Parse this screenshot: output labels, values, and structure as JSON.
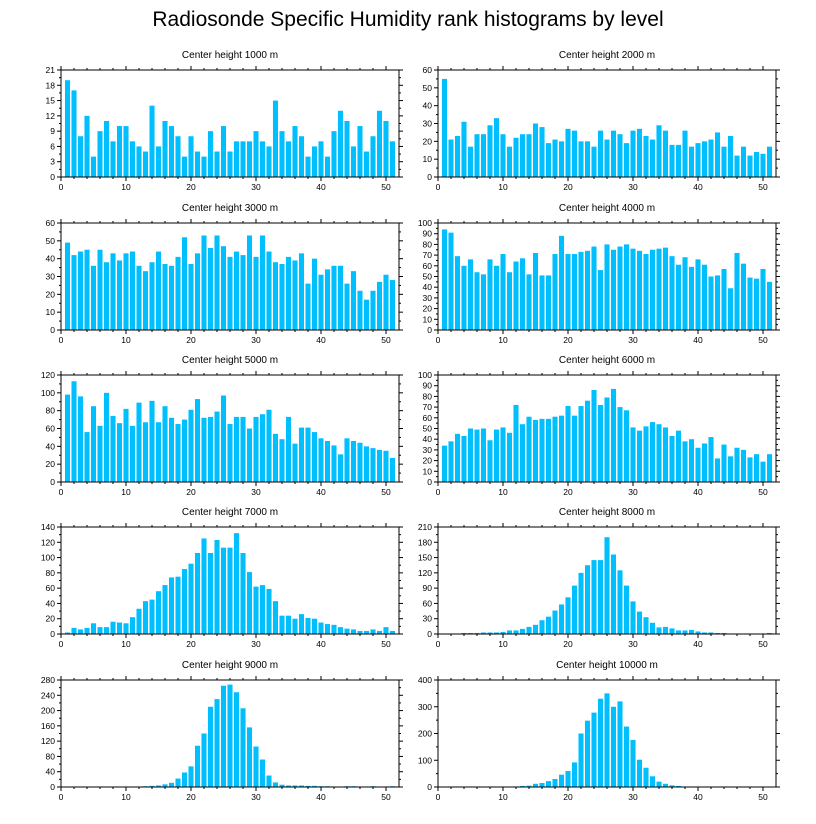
{
  "page_title": "Radiosonde Specific Humidity rank histograms by level",
  "colors": {
    "bar": "#00bfff",
    "axis": "#000000",
    "background": "#ffffff"
  },
  "chart_data": [
    {
      "type": "bar",
      "title": "Center height 1000 m",
      "xlabel": "",
      "ylabel": "",
      "xlim": [
        0,
        52
      ],
      "ylim": [
        0,
        21
      ],
      "yticks": [
        0,
        3,
        6,
        9,
        12,
        15,
        18,
        21
      ],
      "xticks": [
        0,
        10,
        20,
        30,
        40,
        50
      ],
      "categories": [
        1,
        2,
        3,
        4,
        5,
        6,
        7,
        8,
        9,
        10,
        11,
        12,
        13,
        14,
        15,
        16,
        17,
        18,
        19,
        20,
        21,
        22,
        23,
        24,
        25,
        26,
        27,
        28,
        29,
        30,
        31,
        32,
        33,
        34,
        35,
        36,
        37,
        38,
        39,
        40,
        41,
        42,
        43,
        44,
        45,
        46,
        47,
        48,
        49,
        50,
        51
      ],
      "values": [
        19,
        17,
        8,
        12,
        4,
        9,
        11,
        7,
        10,
        10,
        7,
        6,
        5,
        14,
        6,
        11,
        10,
        8,
        4,
        8,
        5,
        4,
        9,
        5,
        10,
        5,
        7,
        7,
        7,
        9,
        7,
        6,
        15,
        9,
        7,
        10,
        8,
        4,
        6,
        7,
        4,
        9,
        13,
        11,
        6,
        10,
        5,
        8,
        13,
        11,
        7
      ]
    },
    {
      "type": "bar",
      "title": "Center height 2000 m",
      "xlabel": "",
      "ylabel": "",
      "xlim": [
        0,
        52
      ],
      "ylim": [
        0,
        60
      ],
      "yticks": [
        0,
        10,
        20,
        30,
        40,
        50,
        60
      ],
      "xticks": [
        0,
        10,
        20,
        30,
        40,
        50
      ],
      "categories": [
        1,
        2,
        3,
        4,
        5,
        6,
        7,
        8,
        9,
        10,
        11,
        12,
        13,
        14,
        15,
        16,
        17,
        18,
        19,
        20,
        21,
        22,
        23,
        24,
        25,
        26,
        27,
        28,
        29,
        30,
        31,
        32,
        33,
        34,
        35,
        36,
        37,
        38,
        39,
        40,
        41,
        42,
        43,
        44,
        45,
        46,
        47,
        48,
        49,
        50,
        51
      ],
      "values": [
        55,
        21,
        23,
        31,
        17,
        24,
        24,
        29,
        33,
        24,
        17,
        22,
        24,
        24,
        30,
        28,
        19,
        21,
        20,
        27,
        26,
        20,
        20,
        17,
        26,
        21,
        26,
        24,
        19,
        26,
        27,
        23,
        21,
        29,
        26,
        18,
        18,
        26,
        17,
        19,
        20,
        21,
        25,
        17,
        23,
        12,
        17,
        12,
        14,
        13,
        17
      ]
    },
    {
      "type": "bar",
      "title": "Center height 3000 m",
      "xlabel": "",
      "ylabel": "",
      "xlim": [
        0,
        52
      ],
      "ylim": [
        0,
        60
      ],
      "yticks": [
        0,
        10,
        20,
        30,
        40,
        50,
        60
      ],
      "xticks": [
        0,
        10,
        20,
        30,
        40,
        50
      ],
      "categories": [
        1,
        2,
        3,
        4,
        5,
        6,
        7,
        8,
        9,
        10,
        11,
        12,
        13,
        14,
        15,
        16,
        17,
        18,
        19,
        20,
        21,
        22,
        23,
        24,
        25,
        26,
        27,
        28,
        29,
        30,
        31,
        32,
        33,
        34,
        35,
        36,
        37,
        38,
        39,
        40,
        41,
        42,
        43,
        44,
        45,
        46,
        47,
        48,
        49,
        50,
        51
      ],
      "values": [
        49,
        42,
        44,
        45,
        36,
        45,
        38,
        43,
        39,
        43,
        44,
        36,
        33,
        38,
        44,
        37,
        36,
        41,
        52,
        37,
        43,
        53,
        46,
        53,
        47,
        41,
        44,
        42,
        53,
        41,
        53,
        44,
        38,
        37,
        41,
        39,
        43,
        26,
        40,
        31,
        34,
        36,
        36,
        26,
        33,
        22,
        17,
        22,
        27,
        31,
        28
      ]
    },
    {
      "type": "bar",
      "title": "Center height 4000 m",
      "xlabel": "",
      "ylabel": "",
      "xlim": [
        0,
        52
      ],
      "ylim": [
        0,
        100
      ],
      "yticks": [
        0,
        10,
        20,
        30,
        40,
        50,
        60,
        70,
        80,
        90,
        100
      ],
      "xticks": [
        0,
        10,
        20,
        30,
        40,
        50
      ],
      "categories": [
        1,
        2,
        3,
        4,
        5,
        6,
        7,
        8,
        9,
        10,
        11,
        12,
        13,
        14,
        15,
        16,
        17,
        18,
        19,
        20,
        21,
        22,
        23,
        24,
        25,
        26,
        27,
        28,
        29,
        30,
        31,
        32,
        33,
        34,
        35,
        36,
        37,
        38,
        39,
        40,
        41,
        42,
        43,
        44,
        45,
        46,
        47,
        48,
        49,
        50,
        51
      ],
      "values": [
        94,
        91,
        69,
        60,
        66,
        54,
        52,
        66,
        60,
        71,
        54,
        64,
        67,
        52,
        72,
        51,
        51,
        71,
        88,
        71,
        71,
        73,
        74,
        78,
        56,
        80,
        75,
        78,
        80,
        76,
        74,
        71,
        75,
        76,
        77,
        69,
        61,
        68,
        59,
        66,
        61,
        50,
        51,
        57,
        39,
        72,
        62,
        49,
        48,
        57,
        45
      ]
    },
    {
      "type": "bar",
      "title": "Center height 5000 m",
      "xlabel": "",
      "ylabel": "",
      "xlim": [
        0,
        52
      ],
      "ylim": [
        0,
        120
      ],
      "yticks": [
        0,
        20,
        40,
        60,
        80,
        100,
        120
      ],
      "xticks": [
        0,
        10,
        20,
        30,
        40,
        50
      ],
      "categories": [
        1,
        2,
        3,
        4,
        5,
        6,
        7,
        8,
        9,
        10,
        11,
        12,
        13,
        14,
        15,
        16,
        17,
        18,
        19,
        20,
        21,
        22,
        23,
        24,
        25,
        26,
        27,
        28,
        29,
        30,
        31,
        32,
        33,
        34,
        35,
        36,
        37,
        38,
        39,
        40,
        41,
        42,
        43,
        44,
        45,
        46,
        47,
        48,
        49,
        50,
        51
      ],
      "values": [
        98,
        113,
        96,
        56,
        85,
        63,
        100,
        74,
        66,
        82,
        63,
        89,
        67,
        91,
        67,
        85,
        72,
        65,
        70,
        81,
        93,
        72,
        73,
        79,
        97,
        65,
        73,
        73,
        60,
        73,
        76,
        81,
        54,
        48,
        73,
        43,
        61,
        61,
        56,
        49,
        46,
        41,
        31,
        49,
        46,
        44,
        40,
        38,
        36,
        35,
        27
      ]
    },
    {
      "type": "bar",
      "title": "Center height 6000 m",
      "xlabel": "",
      "ylabel": "",
      "xlim": [
        0,
        52
      ],
      "ylim": [
        0,
        100
      ],
      "yticks": [
        0,
        10,
        20,
        30,
        40,
        50,
        60,
        70,
        80,
        90,
        100
      ],
      "xticks": [
        0,
        10,
        20,
        30,
        40,
        50
      ],
      "categories": [
        1,
        2,
        3,
        4,
        5,
        6,
        7,
        8,
        9,
        10,
        11,
        12,
        13,
        14,
        15,
        16,
        17,
        18,
        19,
        20,
        21,
        22,
        23,
        24,
        25,
        26,
        27,
        28,
        29,
        30,
        31,
        32,
        33,
        34,
        35,
        36,
        37,
        38,
        39,
        40,
        41,
        42,
        43,
        44,
        45,
        46,
        47,
        48,
        49,
        50,
        51
      ],
      "values": [
        34,
        38,
        45,
        43,
        50,
        49,
        50,
        39,
        49,
        51,
        46,
        72,
        54,
        61,
        58,
        59,
        59,
        61,
        62,
        71,
        62,
        71,
        76,
        86,
        72,
        79,
        87,
        70,
        67,
        51,
        48,
        52,
        56,
        54,
        51,
        43,
        48,
        38,
        40,
        32,
        36,
        42,
        22,
        35,
        24,
        32,
        30,
        23,
        26,
        19,
        26
      ]
    },
    {
      "type": "bar",
      "title": "Center height 7000 m",
      "xlabel": "",
      "ylabel": "",
      "xlim": [
        0,
        52
      ],
      "ylim": [
        0,
        140
      ],
      "yticks": [
        0,
        20,
        40,
        60,
        80,
        100,
        120,
        140
      ],
      "xticks": [
        0,
        10,
        20,
        30,
        40,
        50
      ],
      "categories": [
        1,
        2,
        3,
        4,
        5,
        6,
        7,
        8,
        9,
        10,
        11,
        12,
        13,
        14,
        15,
        16,
        17,
        18,
        19,
        20,
        21,
        22,
        23,
        24,
        25,
        26,
        27,
        28,
        29,
        30,
        31,
        32,
        33,
        34,
        35,
        36,
        37,
        38,
        39,
        40,
        41,
        42,
        43,
        44,
        45,
        46,
        47,
        48,
        49,
        50,
        51
      ],
      "values": [
        2,
        8,
        6,
        8,
        14,
        9,
        9,
        16,
        15,
        14,
        22,
        33,
        43,
        45,
        56,
        64,
        74,
        75,
        85,
        92,
        106,
        125,
        106,
        123,
        113,
        113,
        132,
        106,
        81,
        62,
        64,
        59,
        43,
        24,
        24,
        20,
        26,
        21,
        20,
        15,
        13,
        12,
        9,
        7,
        6,
        4,
        4,
        6,
        4,
        9,
        4
      ]
    },
    {
      "type": "bar",
      "title": "Center height 8000 m",
      "xlabel": "",
      "ylabel": "",
      "xlim": [
        0,
        52
      ],
      "ylim": [
        0,
        210
      ],
      "yticks": [
        0,
        30,
        60,
        90,
        120,
        150,
        180,
        210
      ],
      "xticks": [
        0,
        10,
        20,
        30,
        40,
        50
      ],
      "categories": [
        1,
        2,
        3,
        4,
        5,
        6,
        7,
        8,
        9,
        10,
        11,
        12,
        13,
        14,
        15,
        16,
        17,
        18,
        19,
        20,
        21,
        22,
        23,
        24,
        25,
        26,
        27,
        28,
        29,
        30,
        31,
        32,
        33,
        34,
        35,
        36,
        37,
        38,
        39,
        40,
        41,
        42,
        43,
        44,
        45,
        46,
        47,
        48,
        49,
        50,
        51
      ],
      "values": [
        0,
        0,
        0,
        2,
        2,
        2,
        3,
        3,
        3,
        4,
        7,
        7,
        10,
        14,
        18,
        27,
        34,
        46,
        58,
        72,
        95,
        120,
        135,
        145,
        145,
        190,
        156,
        125,
        95,
        64,
        44,
        33,
        22,
        13,
        14,
        11,
        7,
        7,
        8,
        5,
        3,
        3,
        2,
        2,
        1,
        1,
        1,
        0,
        0,
        0,
        2
      ]
    },
    {
      "type": "bar",
      "title": "Center height 9000 m",
      "xlabel": "",
      "ylabel": "",
      "xlim": [
        0,
        52
      ],
      "ylim": [
        0,
        280
      ],
      "yticks": [
        0,
        40,
        80,
        120,
        160,
        200,
        240,
        280
      ],
      "xticks": [
        0,
        10,
        20,
        30,
        40,
        50
      ],
      "categories": [
        1,
        2,
        3,
        4,
        5,
        6,
        7,
        8,
        9,
        10,
        11,
        12,
        13,
        14,
        15,
        16,
        17,
        18,
        19,
        20,
        21,
        22,
        23,
        24,
        25,
        26,
        27,
        28,
        29,
        30,
        31,
        32,
        33,
        34,
        35,
        36,
        37,
        38,
        39,
        40,
        41,
        42,
        43,
        44,
        45,
        46,
        47,
        48,
        49,
        50,
        51
      ],
      "values": [
        0,
        0,
        0,
        0,
        0,
        0,
        0,
        0,
        0,
        0,
        0,
        1,
        2,
        3,
        4,
        7,
        11,
        22,
        38,
        54,
        108,
        140,
        210,
        230,
        265,
        268,
        248,
        206,
        156,
        106,
        72,
        30,
        12,
        6,
        4,
        4,
        4,
        3,
        3,
        2,
        2,
        1,
        1,
        2,
        2,
        0,
        0,
        2,
        0,
        0,
        2
      ]
    },
    {
      "type": "bar",
      "title": "Center height 10000 m",
      "xlabel": "",
      "ylabel": "",
      "xlim": [
        0,
        52
      ],
      "ylim": [
        0,
        400
      ],
      "yticks": [
        0,
        100,
        200,
        300,
        400
      ],
      "xticks": [
        0,
        10,
        20,
        30,
        40,
        50
      ],
      "categories": [
        1,
        2,
        3,
        4,
        5,
        6,
        7,
        8,
        9,
        10,
        11,
        12,
        13,
        14,
        15,
        16,
        17,
        18,
        19,
        20,
        21,
        22,
        23,
        24,
        25,
        26,
        27,
        28,
        29,
        30,
        31,
        32,
        33,
        34,
        35,
        36,
        37,
        38,
        39,
        40,
        41,
        42,
        43,
        44,
        45,
        46,
        47,
        48,
        49,
        50,
        51
      ],
      "values": [
        0,
        0,
        0,
        0,
        0,
        0,
        0,
        0,
        0,
        0,
        1,
        2,
        4,
        5,
        12,
        15,
        22,
        30,
        46,
        60,
        92,
        200,
        248,
        278,
        330,
        350,
        300,
        320,
        226,
        176,
        102,
        72,
        40,
        20,
        12,
        6,
        4,
        2,
        2,
        1,
        1,
        0,
        0,
        0,
        0,
        0,
        0,
        0,
        0,
        0,
        0
      ]
    }
  ]
}
